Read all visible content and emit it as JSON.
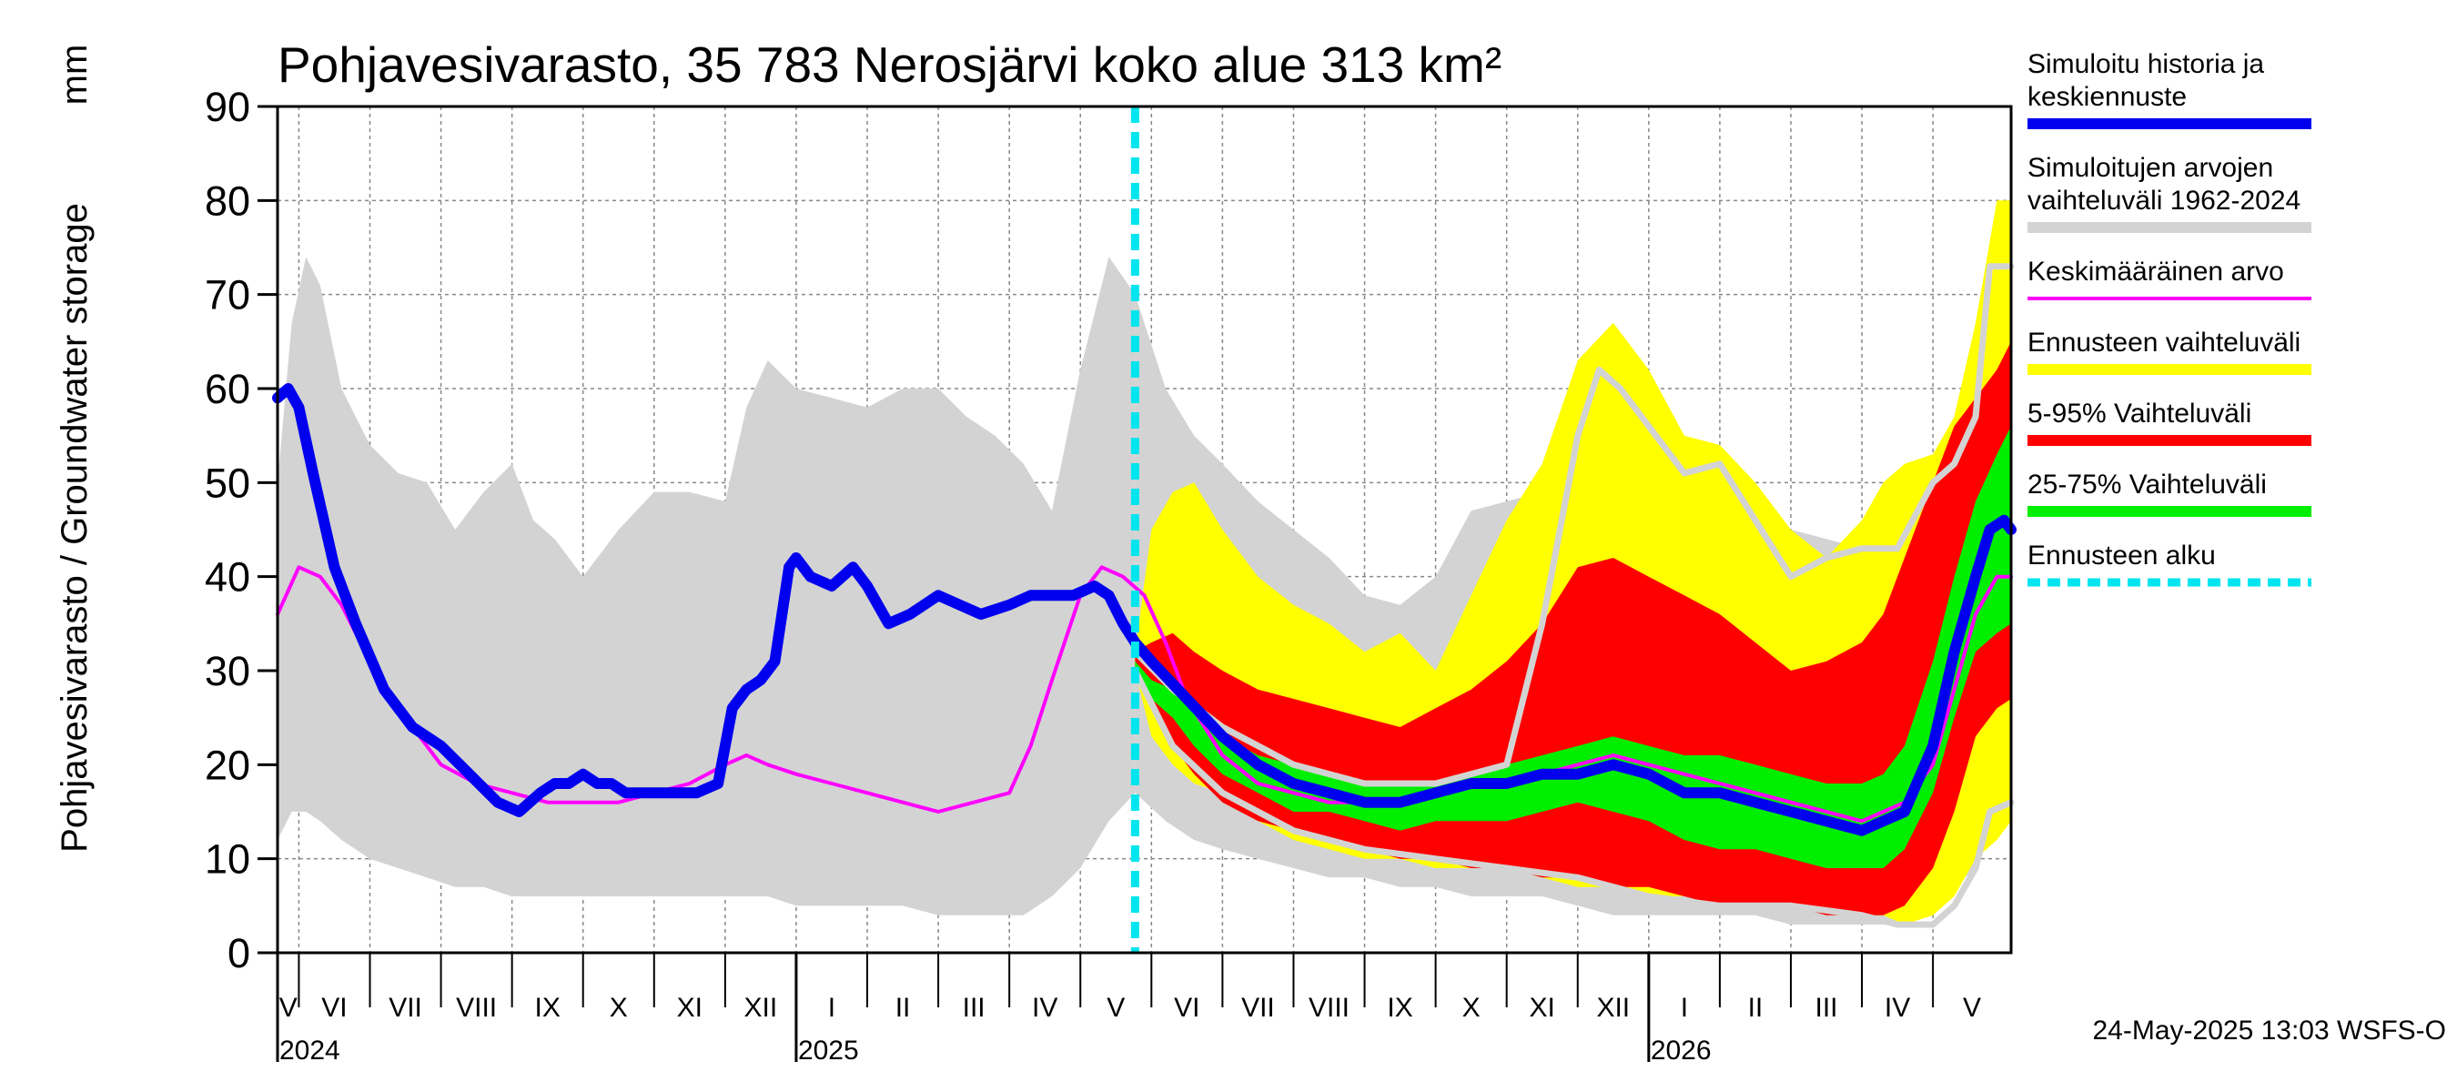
{
  "chart_data": {
    "type": "area",
    "title": "Pohjavesivarasto, 35 783 Nerosjärvi koko alue 313 km²",
    "ylabel": "Pohjavesivarasto / Groundwater storage",
    "yunit": "mm",
    "ylim": [
      0,
      90
    ],
    "yticks": [
      "0",
      "10",
      "20",
      "30",
      "40",
      "50",
      "60",
      "70",
      "80",
      "90"
    ],
    "x_start_month": 4.7,
    "x_end_month": 29.1,
    "months": [
      {
        "label": "V",
        "start": 4.7,
        "end": 5
      },
      {
        "label": "VI",
        "start": 5,
        "end": 6
      },
      {
        "label": "VII",
        "start": 6,
        "end": 7
      },
      {
        "label": "VIII",
        "start": 7,
        "end": 8
      },
      {
        "label": "IX",
        "start": 8,
        "end": 9
      },
      {
        "label": "X",
        "start": 9,
        "end": 10
      },
      {
        "label": "XI",
        "start": 10,
        "end": 11
      },
      {
        "label": "XII",
        "start": 11,
        "end": 12
      },
      {
        "label": "I",
        "start": 12,
        "end": 13
      },
      {
        "label": "II",
        "start": 13,
        "end": 14
      },
      {
        "label": "III",
        "start": 14,
        "end": 15
      },
      {
        "label": "IV",
        "start": 15,
        "end": 16
      },
      {
        "label": "V",
        "start": 16,
        "end": 17
      },
      {
        "label": "VI",
        "start": 17,
        "end": 18
      },
      {
        "label": "VII",
        "start": 18,
        "end": 19
      },
      {
        "label": "VIII",
        "start": 19,
        "end": 20
      },
      {
        "label": "IX",
        "start": 20,
        "end": 21
      },
      {
        "label": "X",
        "start": 21,
        "end": 22
      },
      {
        "label": "XI",
        "start": 22,
        "end": 23
      },
      {
        "label": "XII",
        "start": 23,
        "end": 24
      },
      {
        "label": "I",
        "start": 24,
        "end": 25
      },
      {
        "label": "II",
        "start": 25,
        "end": 26
      },
      {
        "label": "III",
        "start": 26,
        "end": 27
      },
      {
        "label": "IV",
        "start": 27,
        "end": 28
      },
      {
        "label": "V",
        "start": 28,
        "end": 29.1
      }
    ],
    "years": [
      {
        "label": "2024",
        "at": 4.7
      },
      {
        "label": "2025",
        "at": 12
      },
      {
        "label": "2026",
        "at": 24
      }
    ],
    "forecast_start": 16.77,
    "series": [
      {
        "name": "Simuloitujen arvojen vaihteluväli 1962-2024",
        "kind": "band",
        "color": "#d3d3d3",
        "x": [
          4.7,
          4.9,
          5.1,
          5.3,
          5.6,
          6.0,
          6.4,
          6.8,
          7.2,
          7.6,
          8.0,
          8.3,
          8.6,
          9.0,
          9.5,
          10.0,
          10.5,
          11.0,
          11.3,
          11.6,
          12.0,
          12.5,
          13.0,
          13.5,
          14.0,
          14.4,
          14.8,
          15.2,
          15.6,
          16.0,
          16.4,
          16.77
        ],
        "upper": [
          50,
          67,
          74,
          71,
          60,
          54,
          51,
          50,
          45,
          49,
          52,
          46,
          44,
          40,
          45,
          49,
          49,
          48,
          58,
          63,
          60,
          59,
          58,
          60,
          60,
          57,
          55,
          52,
          47,
          62,
          74,
          70
        ],
        "lower": [
          12,
          15,
          15,
          14,
          12,
          10,
          9,
          8,
          7,
          7,
          6,
          6,
          6,
          6,
          6,
          6,
          6,
          6,
          6,
          6,
          5,
          5,
          5,
          5,
          4,
          4,
          4,
          4,
          6,
          9,
          14,
          17
        ]
      },
      {
        "name": "Simuloitujen arvojen vaihteluväli 1962-2024",
        "kind": "band",
        "color": "#d3d3d3",
        "x": [
          16.77,
          17.2,
          17.6,
          18.0,
          18.5,
          19.0,
          19.5,
          20.0,
          20.5,
          21.0,
          21.5,
          22.0,
          22.5,
          23.0,
          23.5,
          24.0,
          24.5,
          25.0,
          25.5,
          26.0,
          26.5,
          27.0,
          27.3,
          27.6,
          28.0,
          28.3,
          28.6,
          28.8,
          29.1
        ],
        "upper": [
          70,
          60,
          55,
          52,
          48,
          45,
          42,
          38,
          37,
          40,
          47,
          48,
          49,
          60,
          62,
          58,
          55,
          52,
          48,
          45,
          44,
          43,
          43,
          45,
          52,
          54,
          57,
          74,
          74
        ],
        "lower": [
          17,
          14,
          12,
          11,
          10,
          9,
          8,
          8,
          7,
          7,
          6,
          6,
          6,
          5,
          4,
          4,
          4,
          4,
          4,
          3,
          3,
          3,
          3,
          3,
          5,
          7,
          9,
          13,
          15
        ]
      },
      {
        "name": "Ennusteen vaihteluväli",
        "kind": "band",
        "color": "#ffff00",
        "x": [
          16.77,
          17.0,
          17.3,
          17.6,
          18.0,
          18.5,
          19.0,
          19.5,
          20.0,
          20.5,
          21.0,
          21.5,
          22.0,
          22.5,
          23.0,
          23.5,
          24.0,
          24.5,
          25.0,
          25.5,
          26.0,
          26.5,
          27.0,
          27.3,
          27.6,
          28.0,
          28.3,
          28.6,
          28.9,
          29.1
        ],
        "upper": [
          32,
          45,
          49,
          50,
          45,
          40,
          37,
          35,
          32,
          34,
          30,
          38,
          46,
          52,
          63,
          67,
          62,
          55,
          54,
          50,
          45,
          42,
          46,
          50,
          52,
          53,
          57,
          67,
          80,
          80
        ],
        "lower": [
          30,
          23,
          20,
          18,
          17,
          14,
          12,
          11,
          10,
          10,
          9,
          9,
          9,
          8,
          7,
          7,
          6,
          6,
          6,
          5,
          5,
          5,
          4,
          4,
          3,
          4,
          6,
          10,
          12,
          14
        ]
      },
      {
        "name": "5-95% Vaihteluväli",
        "kind": "band",
        "color": "#ff0000",
        "x": [
          16.77,
          17.0,
          17.3,
          17.6,
          18.0,
          18.5,
          19.0,
          19.5,
          20.0,
          20.5,
          21.0,
          21.5,
          22.0,
          22.5,
          23.0,
          23.5,
          24.0,
          24.5,
          25.0,
          25.5,
          26.0,
          26.5,
          27.0,
          27.3,
          27.6,
          28.0,
          28.3,
          28.6,
          28.9,
          29.1
        ],
        "upper": [
          32,
          33,
          34,
          32,
          30,
          28,
          27,
          26,
          25,
          24,
          26,
          28,
          31,
          35,
          41,
          42,
          40,
          38,
          36,
          33,
          30,
          31,
          33,
          36,
          42,
          50,
          56,
          59,
          62,
          65
        ],
        "lower": [
          30,
          26,
          22,
          19,
          16,
          14,
          13,
          12,
          11,
          10,
          10,
          9,
          9,
          8,
          8,
          7,
          7,
          6,
          5,
          5,
          5,
          4,
          4,
          4,
          5,
          9,
          15,
          23,
          26,
          27
        ]
      },
      {
        "name": "25-75% Vaihteluväli",
        "kind": "band",
        "color": "#00ee00",
        "x": [
          16.77,
          17.0,
          17.3,
          17.6,
          18.0,
          18.5,
          19.0,
          19.5,
          20.0,
          20.5,
          21.0,
          21.5,
          22.0,
          22.5,
          23.0,
          23.5,
          24.0,
          24.5,
          25.0,
          25.5,
          26.0,
          26.5,
          27.0,
          27.3,
          27.6,
          28.0,
          28.3,
          28.6,
          28.9,
          29.1
        ],
        "upper": [
          31,
          29,
          28,
          26,
          23,
          21,
          20,
          19,
          18,
          18,
          18,
          19,
          20,
          21,
          22,
          23,
          22,
          21,
          21,
          20,
          19,
          18,
          18,
          19,
          22,
          31,
          40,
          48,
          53,
          56
        ],
        "lower": [
          30,
          27,
          25,
          22,
          19,
          17,
          15,
          15,
          14,
          13,
          14,
          14,
          14,
          15,
          16,
          15,
          14,
          12,
          11,
          11,
          10,
          9,
          9,
          9,
          11,
          17,
          25,
          32,
          34,
          35
        ]
      },
      {
        "name": "Simuloitujen arvojen vaihteluväli 1962-2024",
        "kind": "line",
        "color": "#d3d3d3",
        "width": 7,
        "x": [
          16.77,
          17.3,
          18.0,
          19.0,
          20.0,
          21.0,
          22.0,
          22.5,
          23.0,
          23.3,
          23.6,
          24.0,
          24.5,
          25.0,
          25.5,
          26.0,
          26.5,
          27.0,
          27.5,
          28.0,
          28.3,
          28.6,
          28.8,
          29.1
        ],
        "values": [
          32,
          28,
          24,
          20,
          18,
          18,
          20,
          35,
          55,
          62,
          60,
          56,
          51,
          52,
          46,
          40,
          42,
          43,
          43,
          50,
          52,
          57,
          73,
          73
        ]
      },
      {
        "name": "Simuloitujen arvojen vaihteluväli 1962-2024",
        "kind": "line",
        "color": "#d3d3d3",
        "width": 7,
        "x": [
          16.77,
          17.3,
          18.0,
          19.0,
          20.0,
          21.0,
          22.0,
          23.0,
          24.0,
          25.0,
          26.0,
          27.0,
          27.5,
          28.0,
          28.3,
          28.6,
          28.8,
          29.1
        ],
        "values": [
          30,
          22,
          17,
          13,
          11,
          10,
          9,
          8,
          6,
          5,
          5,
          4,
          3,
          3,
          5,
          9,
          15,
          16
        ]
      },
      {
        "name": "Keskimääräinen arvo",
        "kind": "line",
        "color": "#ff00ff",
        "width": 4,
        "x": [
          4.7,
          5.0,
          5.3,
          5.6,
          6.0,
          6.5,
          7.0,
          7.5,
          8.0,
          8.5,
          9.0,
          9.5,
          10.0,
          10.5,
          11.0,
          11.3,
          11.6,
          12.0,
          12.5,
          13.0,
          13.5,
          14.0,
          14.5,
          15.0,
          15.3,
          15.6,
          16.0,
          16.3,
          16.6,
          16.9,
          17.2,
          17.5,
          18.0,
          18.5,
          19.0,
          19.5,
          20.0,
          20.5,
          21.0,
          21.5,
          22.0,
          22.5,
          23.0,
          23.5,
          24.0,
          24.5,
          25.0,
          25.5,
          26.0,
          26.5,
          27.0,
          27.3,
          27.6,
          28.0,
          28.3,
          28.6,
          28.9,
          29.1
        ],
        "values": [
          36,
          41,
          40,
          37,
          31,
          25,
          20,
          18,
          17,
          16,
          16,
          16,
          17,
          18,
          20,
          21,
          20,
          19,
          18,
          17,
          16,
          15,
          16,
          17,
          22,
          29,
          38,
          41,
          40,
          38,
          33,
          27,
          21,
          18,
          17,
          16,
          16,
          16,
          17,
          18,
          18,
          19,
          20,
          21,
          20,
          19,
          18,
          17,
          16,
          15,
          14,
          15,
          16,
          20,
          28,
          36,
          40,
          40
        ]
      },
      {
        "name": "Simuloitu historia ja keskiennuste",
        "kind": "line",
        "color": "#0000ee",
        "width": 12,
        "x": [
          4.7,
          4.85,
          5.0,
          5.2,
          5.5,
          5.8,
          6.2,
          6.6,
          7.0,
          7.4,
          7.8,
          8.1,
          8.4,
          8.6,
          8.8,
          9.0,
          9.2,
          9.4,
          9.6,
          9.8,
          10.0,
          10.3,
          10.6,
          10.9,
          11.1,
          11.3,
          11.5,
          11.7,
          11.9,
          12.0,
          12.2,
          12.5,
          12.8,
          13.0,
          13.3,
          13.6,
          14.0,
          14.3,
          14.6,
          15.0,
          15.3,
          15.6,
          15.9,
          16.2,
          16.4,
          16.6,
          16.77,
          17.0,
          17.5,
          18.0,
          18.5,
          19.0,
          19.5,
          20.0,
          20.5,
          21.0,
          21.5,
          22.0,
          22.5,
          23.0,
          23.5,
          24.0,
          24.5,
          25.0,
          25.5,
          26.0,
          26.5,
          27.0,
          27.3,
          27.6,
          28.0,
          28.3,
          28.6,
          28.8,
          29.0,
          29.1
        ],
        "values": [
          59,
          60,
          58,
          51,
          41,
          35,
          28,
          24,
          22,
          19,
          16,
          15,
          17,
          18,
          18,
          19,
          18,
          18,
          17,
          17,
          17,
          17,
          17,
          18,
          26,
          28,
          29,
          31,
          41,
          42,
          40,
          39,
          41,
          39,
          35,
          36,
          38,
          37,
          36,
          37,
          38,
          38,
          38,
          39,
          38,
          35,
          33,
          31,
          27,
          23,
          20,
          18,
          17,
          16,
          16,
          17,
          18,
          18,
          19,
          19,
          20,
          19,
          17,
          17,
          16,
          15,
          14,
          13,
          14,
          15,
          22,
          32,
          40,
          45,
          46,
          45
        ]
      }
    ],
    "legend_position": "right",
    "legend": [
      {
        "lines": [
          "Simuloitu historia ja",
          "keskiennuste"
        ],
        "color": "#0000ee",
        "style": "thick"
      },
      {
        "lines": [
          "Simuloitujen arvojen",
          "vaihteluväli 1962-2024"
        ],
        "color": "#d3d3d3",
        "style": "thick"
      },
      {
        "lines": [
          "Keskimääräinen arvo"
        ],
        "color": "#ff00ff",
        "style": "thin"
      },
      {
        "lines": [
          "Ennusteen vaihteluväli"
        ],
        "color": "#ffff00",
        "style": "thick"
      },
      {
        "lines": [
          "5-95% Vaihteluväli"
        ],
        "color": "#ff0000",
        "style": "thick"
      },
      {
        "lines": [
          "25-75% Vaihteluväli"
        ],
        "color": "#00ee00",
        "style": "thick"
      },
      {
        "lines": [
          "Ennusteen alku"
        ],
        "color": "#00e5ee",
        "style": "dashed"
      }
    ],
    "footer": "24-May-2025 13:03 WSFS-O"
  }
}
